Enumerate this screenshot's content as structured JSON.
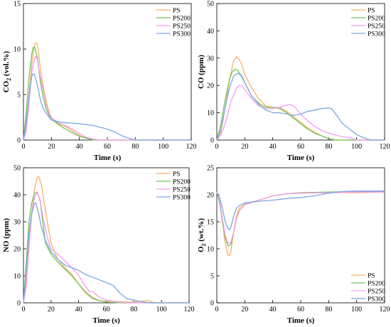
{
  "colors": {
    "PS": "#f7b267",
    "PS200": "#70c55a",
    "PS250": "#f59cf0",
    "PS300": "#7ba7e0"
  },
  "chart_data": [
    {
      "id": "co2",
      "type": "line",
      "xlabel": "Time (s)",
      "ylabel_main": "CO",
      "ylabel_sub": "2",
      "ylabel_tail": " (vol.%)",
      "xlim": [
        0,
        120
      ],
      "ylim": [
        0,
        15
      ],
      "xticks": [
        0,
        20,
        40,
        60,
        80,
        100,
        120
      ],
      "yticks": [
        0,
        5,
        10,
        15
      ],
      "legend_position": "top-right",
      "series": [
        {
          "name": "PS",
          "x": [
            0,
            2,
            4,
            6,
            8,
            9,
            10,
            12,
            14,
            16,
            18,
            20,
            25,
            30,
            35,
            40,
            45,
            50,
            55,
            120
          ],
          "y": [
            0,
            1.5,
            5,
            8.5,
            10.5,
            10.7,
            10.5,
            8,
            6,
            4.5,
            3.2,
            2.5,
            1.8,
            1.5,
            1,
            0.5,
            0.2,
            0.1,
            0,
            0
          ]
        },
        {
          "name": "PS200",
          "x": [
            0,
            2,
            4,
            6,
            7,
            8,
            10,
            12,
            14,
            16,
            18,
            20,
            25,
            30,
            35,
            40,
            45,
            50,
            120
          ],
          "y": [
            0,
            3,
            7,
            9.5,
            10.2,
            10.2,
            9,
            6.5,
            4.8,
            3.5,
            2.8,
            2.3,
            1.7,
            1.2,
            0.8,
            0.4,
            0.2,
            0,
            0
          ]
        },
        {
          "name": "PS250",
          "x": [
            0,
            2,
            4,
            6,
            8,
            9,
            10,
            12,
            14,
            16,
            18,
            20,
            25,
            30,
            35,
            40,
            45,
            50,
            55,
            120
          ],
          "y": [
            0,
            1,
            4,
            7.5,
            9,
            9.2,
            8.8,
            7,
            5.5,
            4,
            3,
            2.5,
            1.9,
            1.6,
            1.2,
            0.7,
            0.3,
            0.1,
            0,
            0
          ]
        },
        {
          "name": "PS300",
          "x": [
            0,
            2,
            4,
            6,
            7,
            8,
            10,
            12,
            14,
            16,
            18,
            20,
            25,
            30,
            40,
            50,
            55,
            60,
            65,
            70,
            75,
            80,
            120
          ],
          "y": [
            0,
            2,
            5,
            7,
            7.3,
            7.2,
            6,
            4.5,
            3.5,
            3,
            2.6,
            2.2,
            2,
            1.9,
            1.8,
            1.6,
            1.4,
            1.2,
            0.9,
            0.5,
            0.2,
            0,
            0
          ]
        }
      ]
    },
    {
      "id": "co",
      "type": "line",
      "xlabel": "Time (s)",
      "ylabel_main": "CO (ppm)",
      "ylabel_sub": "",
      "ylabel_tail": "",
      "xlim": [
        0,
        120
      ],
      "ylim": [
        0,
        50
      ],
      "xticks": [
        0,
        20,
        40,
        60,
        80,
        100,
        120
      ],
      "yticks": [
        0,
        10,
        20,
        30,
        40,
        50
      ],
      "legend_position": "top-right",
      "series": [
        {
          "name": "PS",
          "x": [
            0,
            3,
            6,
            9,
            12,
            14,
            16,
            18,
            20,
            25,
            30,
            35,
            40,
            45,
            50,
            55,
            60,
            65,
            70,
            75,
            80,
            85,
            90,
            120
          ],
          "y": [
            0,
            3,
            12,
            22,
            29,
            30.5,
            29.5,
            27.5,
            24,
            19,
            15,
            12.5,
            12,
            12,
            10.5,
            8.5,
            6.5,
            4.5,
            3,
            1.5,
            0.5,
            0,
            0,
            0
          ]
        },
        {
          "name": "PS200",
          "x": [
            0,
            3,
            6,
            9,
            11,
            13,
            15,
            17,
            20,
            25,
            30,
            35,
            40,
            45,
            50,
            55,
            60,
            65,
            70,
            75,
            80,
            85,
            90,
            120
          ],
          "y": [
            0,
            6,
            15,
            22,
            25,
            26,
            25.5,
            24,
            21,
            16,
            13.5,
            12,
            12,
            11.5,
            10,
            8,
            6,
            4,
            2.5,
            1.5,
            0.5,
            0,
            0,
            0
          ]
        },
        {
          "name": "PS250",
          "x": [
            0,
            3,
            6,
            10,
            14,
            16,
            18,
            20,
            25,
            30,
            35,
            40,
            45,
            50,
            52,
            55,
            60,
            65,
            70,
            75,
            80,
            85,
            90,
            95,
            100,
            120
          ],
          "y": [
            0,
            2,
            6,
            14,
            19,
            20,
            19.8,
            18.5,
            15,
            12.5,
            11.5,
            11.5,
            12,
            12.8,
            13,
            12.5,
            9.5,
            7,
            5,
            3.5,
            2.5,
            1.8,
            1.2,
            0.8,
            0,
            0
          ]
        },
        {
          "name": "PS300",
          "x": [
            0,
            3,
            6,
            9,
            12,
            15,
            18,
            20,
            25,
            30,
            35,
            40,
            45,
            50,
            55,
            60,
            65,
            70,
            75,
            80,
            82,
            85,
            90,
            95,
            100,
            105,
            110,
            120
          ],
          "y": [
            0,
            4,
            12,
            19,
            23.5,
            24.5,
            23.5,
            21,
            16,
            13,
            11,
            10,
            10,
            9.5,
            9,
            9.5,
            10.5,
            11,
            11.5,
            11.8,
            11.5,
            9.5,
            6,
            4,
            2,
            0.8,
            0,
            0
          ]
        }
      ]
    },
    {
      "id": "no",
      "type": "line",
      "xlabel": "Time (s)",
      "ylabel_main": "NO (ppm)",
      "ylabel_sub": "",
      "ylabel_tail": "",
      "xlim": [
        0,
        120
      ],
      "ylim": [
        0,
        50
      ],
      "xticks": [
        0,
        20,
        40,
        60,
        80,
        100,
        120
      ],
      "yticks": [
        0,
        10,
        20,
        30,
        40,
        50
      ],
      "legend_position": "top-right",
      "series": [
        {
          "name": "PS",
          "x": [
            0,
            2,
            5,
            8,
            10,
            11,
            13,
            15,
            17,
            20,
            25,
            30,
            35,
            40,
            45,
            50,
            55,
            60,
            65,
            70,
            80,
            90,
            95,
            120
          ],
          "y": [
            0,
            8,
            28,
            42,
            46.5,
            46.8,
            44,
            37,
            31,
            22,
            16,
            13,
            10.5,
            7,
            3.5,
            1.5,
            0.8,
            0.5,
            0.6,
            0.4,
            0.3,
            0.8,
            0,
            0
          ]
        },
        {
          "name": "PS200",
          "x": [
            0,
            2,
            4,
            6,
            8,
            10,
            12,
            14,
            16,
            20,
            25,
            30,
            35,
            40,
            45,
            50,
            55,
            60,
            70,
            120
          ],
          "y": [
            0,
            15,
            30,
            37,
            40.5,
            41,
            38,
            30,
            22,
            18,
            15,
            12.5,
            10,
            7,
            4,
            2,
            0.8,
            0.3,
            0,
            0
          ]
        },
        {
          "name": "PS250",
          "x": [
            0,
            2,
            4,
            6,
            8,
            10,
            12,
            14,
            16,
            18,
            20,
            25,
            30,
            35,
            40,
            45,
            48,
            50,
            55,
            60,
            65,
            70,
            80,
            120
          ],
          "y": [
            0,
            6,
            20,
            33,
            39,
            41,
            38,
            32,
            27,
            23,
            20,
            18,
            15.5,
            13,
            10,
            6,
            4,
            4.2,
            2,
            1,
            0.5,
            0.2,
            0,
            0
          ]
        },
        {
          "name": "PS300",
          "x": [
            0,
            2,
            4,
            6,
            8,
            9,
            11,
            13,
            16,
            20,
            25,
            30,
            35,
            40,
            45,
            50,
            55,
            60,
            65,
            70,
            75,
            80,
            85,
            90,
            120
          ],
          "y": [
            0,
            12,
            26,
            33,
            36.8,
            37,
            33,
            28,
            23,
            19,
            16,
            14,
            13,
            12,
            10.5,
            9.5,
            8.5,
            7.5,
            6.5,
            3.5,
            1.5,
            1,
            0.5,
            0,
            0
          ]
        }
      ]
    },
    {
      "id": "o2",
      "type": "line",
      "xlabel": "Time (s)",
      "ylabel_main": "O",
      "ylabel_sub": "2",
      "ylabel_tail": " (wt.%)",
      "xlim": [
        0,
        120
      ],
      "ylim": [
        0,
        25
      ],
      "xticks": [
        0,
        20,
        40,
        60,
        80,
        100,
        120
      ],
      "yticks": [
        0,
        5,
        10,
        15,
        20,
        25
      ],
      "legend_position": "bottom-right",
      "series": [
        {
          "name": "PS",
          "x": [
            0,
            2,
            4,
            6,
            8,
            9,
            10,
            12,
            14,
            16,
            20,
            30,
            40,
            50,
            60,
            80,
            100,
            120
          ],
          "y": [
            20.5,
            19,
            15,
            11,
            8.8,
            8.7,
            9.5,
            13,
            16,
            17.5,
            18.3,
            19,
            19.8,
            20.2,
            20.3,
            20.4,
            20.4,
            20.5
          ]
        },
        {
          "name": "PS200",
          "x": [
            0,
            2,
            4,
            6,
            8,
            10,
            12,
            14,
            16,
            20,
            30,
            40,
            50,
            60,
            80,
            100,
            120
          ],
          "y": [
            20.5,
            18.5,
            15,
            12,
            10.5,
            10.8,
            13,
            15.5,
            17,
            18.2,
            19,
            19.8,
            20.2,
            20.4,
            20.5,
            20.6,
            20.6
          ]
        },
        {
          "name": "PS250",
          "x": [
            0,
            2,
            4,
            6,
            8,
            10,
            12,
            14,
            16,
            20,
            30,
            40,
            50,
            60,
            80,
            100,
            120
          ],
          "y": [
            20.5,
            19,
            15.5,
            12.5,
            11,
            11.2,
            13,
            15.5,
            17,
            18.2,
            19,
            19.8,
            20.2,
            20.3,
            20.4,
            20.5,
            20.5
          ]
        },
        {
          "name": "PS300",
          "x": [
            0,
            2,
            4,
            6,
            8,
            9,
            10,
            12,
            14,
            16,
            20,
            30,
            40,
            50,
            60,
            70,
            80,
            90,
            100,
            120
          ],
          "y": [
            20.5,
            19.5,
            17.5,
            15,
            13.8,
            13.5,
            14,
            16,
            17.5,
            18,
            18.5,
            18.8,
            19,
            19.3,
            19.5,
            19.8,
            20.3,
            20.6,
            20.7,
            20.7
          ]
        }
      ]
    }
  ]
}
